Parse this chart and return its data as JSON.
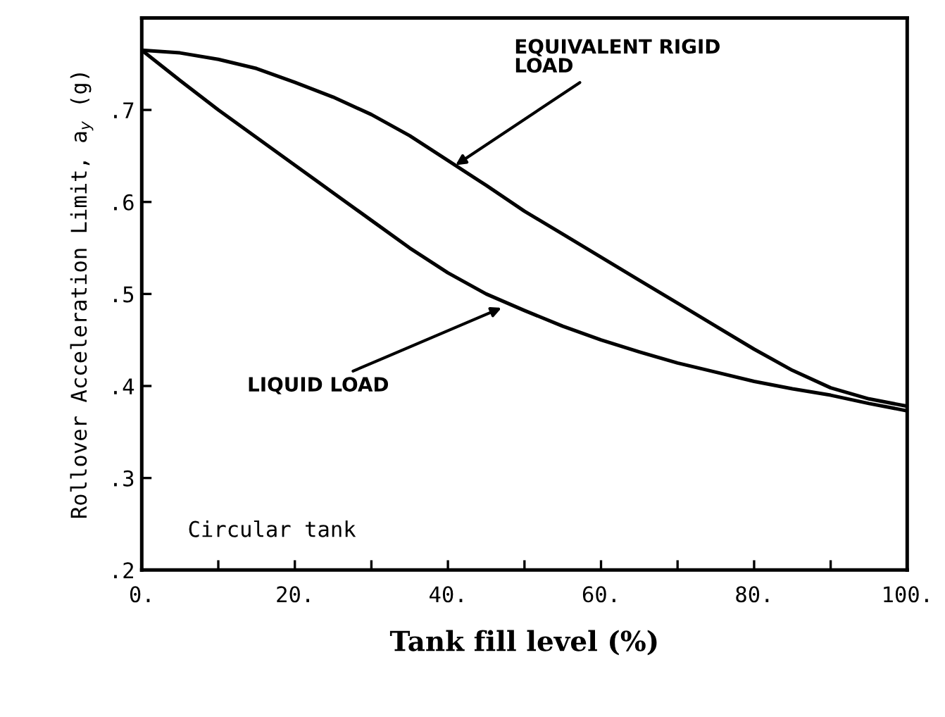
{
  "chart_data": {
    "type": "line",
    "xlabel": "Tank fill level (%)",
    "ylabel": "Rollover Acceleration Limit, a$_{y}$ (g)",
    "x": [
      0,
      5,
      10,
      15,
      20,
      25,
      30,
      35,
      40,
      45,
      50,
      55,
      60,
      65,
      70,
      75,
      80,
      85,
      90,
      95,
      100
    ],
    "series": [
      {
        "color": "#000000",
        "values": [
          0.765,
          0.762,
          0.755,
          0.745,
          0.73,
          0.714,
          0.695,
          0.672,
          0.645,
          0.618,
          0.59,
          0.565,
          0.54,
          0.515,
          0.49,
          0.465,
          0.44,
          0.417,
          0.398,
          0.386,
          0.378
        ]
      },
      {
        "color": "#000000",
        "values": [
          0.765,
          0.732,
          0.7,
          0.67,
          0.64,
          0.61,
          0.58,
          0.55,
          0.523,
          0.5,
          0.482,
          0.465,
          0.45,
          0.437,
          0.425,
          0.415,
          0.405,
          0.397,
          0.39,
          0.381,
          0.373
        ]
      }
    ],
    "annotations": [
      {
        "text": "EQUIVALENT RIGID\nLOAD",
        "x": 41,
        "y": 0.64
      },
      {
        "text": "LIQUID LOAD",
        "x": 47,
        "y": 0.485
      },
      "Circular tank"
    ],
    "xlim": [
      0,
      100
    ],
    "ylim": [
      0.2,
      0.8
    ],
    "xticks": [
      {
        "value": 0,
        "label": "0."
      },
      {
        "value": 10,
        "label": null
      },
      {
        "value": 20,
        "label": "20."
      },
      {
        "value": 30,
        "label": null
      },
      {
        "value": 40,
        "label": "40."
      },
      {
        "value": 50,
        "label": null
      },
      {
        "value": 60,
        "label": "60."
      },
      {
        "value": 70,
        "label": null
      },
      {
        "value": 80,
        "label": "80."
      },
      {
        "value": 90,
        "label": null
      },
      {
        "value": 100,
        "label": "100."
      }
    ],
    "yticks": [
      {
        "value": 0.2,
        "label": ".2"
      },
      {
        "value": 0.3,
        "label": ".3"
      },
      {
        "value": 0.4,
        "label": ".4"
      },
      {
        "value": 0.5,
        "label": ".5"
      },
      {
        "value": 0.6,
        "label": ".6"
      },
      {
        "value": 0.7,
        "label": ".7"
      }
    ],
    "grid": false,
    "legend": false,
    "marker": "none",
    "line_style": "solid"
  }
}
